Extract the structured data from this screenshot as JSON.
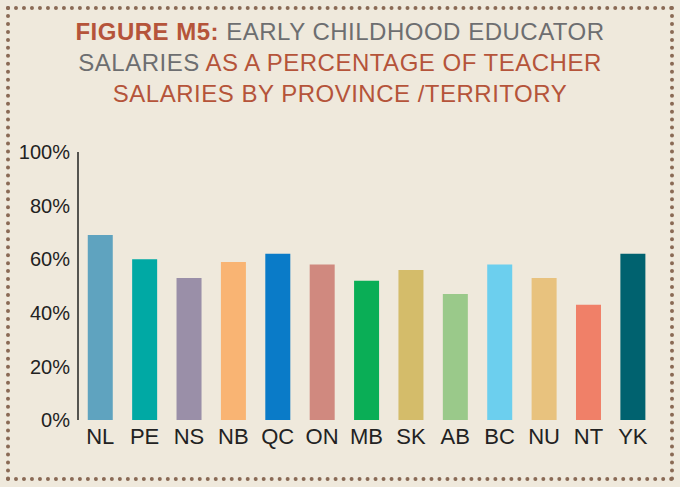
{
  "chart_data": {
    "type": "bar",
    "title": "FIGURE M5: EARLY CHILDHOOD EDUCATOR SALARIES AS A PERCENTAGE OF TEACHER SALARIES BY PROVINCE /TERRITORY",
    "categories": [
      "NL",
      "PE",
      "NS",
      "NB",
      "QC",
      "ON",
      "MB",
      "SK",
      "AB",
      "BC",
      "NU",
      "NT",
      "YK"
    ],
    "values": [
      69,
      60,
      53,
      59,
      62,
      58,
      52,
      56,
      47,
      58,
      53,
      43,
      62
    ],
    "colors": [
      "#5fa3bf",
      "#00a9a4",
      "#9a8fa8",
      "#f9b473",
      "#0a7bc8",
      "#d0897f",
      "#0aae56",
      "#d4bc6a",
      "#9ac98a",
      "#6ccfee",
      "#e8c27e",
      "#f08068",
      "#00626f"
    ],
    "ylim": [
      0,
      100
    ],
    "yticks": [
      {
        "value": 0,
        "label": "0%"
      },
      {
        "value": 20,
        "label": "20%"
      },
      {
        "value": 40,
        "label": "40%"
      },
      {
        "value": 60,
        "label": "60%"
      },
      {
        "value": 80,
        "label": "80%"
      },
      {
        "value": 100,
        "label": "100%"
      }
    ],
    "grid": false
  }
}
